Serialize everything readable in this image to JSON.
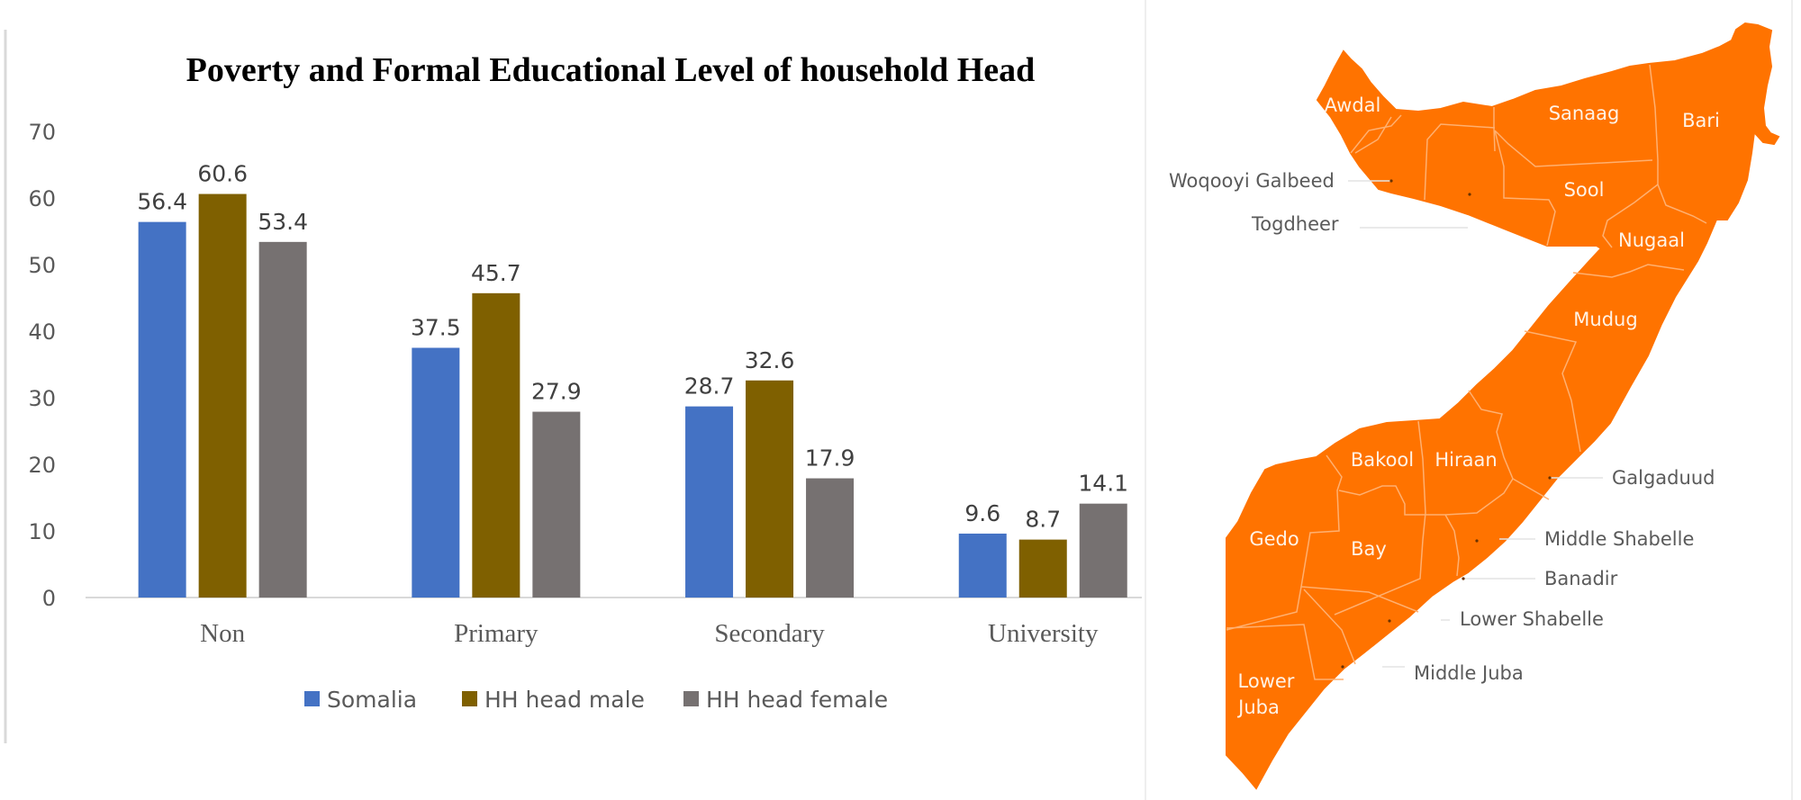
{
  "chart_data": {
    "type": "bar",
    "title": "Poverty and Formal Educational Level of household Head",
    "xlabel": "",
    "ylabel": "",
    "categories": [
      "Non",
      "Primary",
      "Secondary",
      "University"
    ],
    "series": [
      {
        "name": "Somalia",
        "color": "#4472c4",
        "values": [
          56.4,
          37.5,
          28.7,
          9.6
        ]
      },
      {
        "name": "HH head male",
        "color": "#7f6000",
        "values": [
          60.6,
          45.7,
          32.6,
          8.7
        ]
      },
      {
        "name": "HH head female",
        "color": "#767171",
        "values": [
          53.4,
          27.9,
          17.9,
          14.1
        ]
      }
    ],
    "data_labels": [
      [
        "56.4",
        "37.5",
        "28.7",
        "9.6"
      ],
      [
        "60.6",
        "45.7",
        "32.6",
        "8.7"
      ],
      [
        "53.4",
        "27.9",
        "17.9",
        "14.1"
      ]
    ],
    "yticks": [
      "0",
      "10",
      "20",
      "30",
      "40",
      "50",
      "60",
      "70"
    ],
    "ytick_values": [
      0,
      10,
      20,
      30,
      40,
      50,
      60,
      70
    ],
    "ylim": [
      0,
      70
    ],
    "grid": false,
    "legend_position": "bottom"
  },
  "map": {
    "fill_color": "#ff7300",
    "border_color": "#ffb070",
    "regions_inside": [
      {
        "name": "Awdal"
      },
      {
        "name": "Sanaag"
      },
      {
        "name": "Bari"
      },
      {
        "name": "Sool"
      },
      {
        "name": "Nugaal"
      },
      {
        "name": "Mudug"
      },
      {
        "name": "Bakool"
      },
      {
        "name": "Hiraan"
      },
      {
        "name": "Gedo"
      },
      {
        "name": "Bay"
      },
      {
        "name": "Lower"
      },
      {
        "name": "Juba"
      }
    ],
    "regions_callout": [
      {
        "name": "Woqooyi Galbeed"
      },
      {
        "name": "Togdheer"
      },
      {
        "name": "Galgaduud"
      },
      {
        "name": "Middle Shabelle"
      },
      {
        "name": "Banadir"
      },
      {
        "name": "Lower Shabelle"
      },
      {
        "name": "Middle Juba"
      }
    ]
  }
}
